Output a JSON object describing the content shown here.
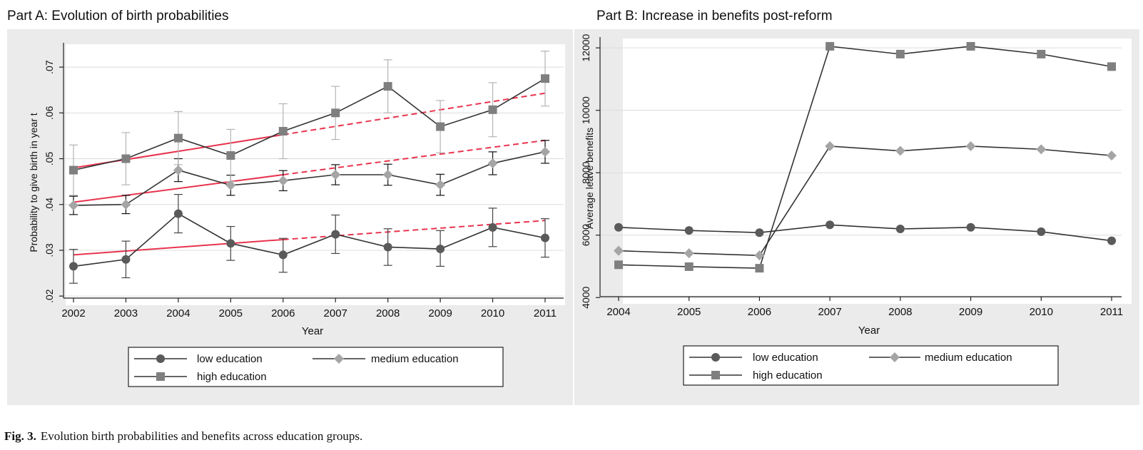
{
  "figure": {
    "caption_label": "Fig. 3.",
    "caption_text": "Evolution birth probabilities and benefits across education groups."
  },
  "colors": {
    "panel_bg": "#ebebeb",
    "plot_bg": "#ffffff",
    "grid": "#dcdcdc",
    "low": "#5a5a5a",
    "medium": "#a5a5a5",
    "high": "#7f7f7f",
    "line": "#333333",
    "trend": "#e8344f",
    "err_low": "#444444",
    "err_medium": "#111111",
    "err_high": "#b4b4b4"
  },
  "chart_data": [
    {
      "id": "partA",
      "type": "line",
      "title": "Part A: Evolution of birth probabilities",
      "xlabel": "Year",
      "ylabel": "Probability to give birth in year t",
      "x": [
        2002,
        2003,
        2004,
        2005,
        2006,
        2007,
        2008,
        2009,
        2010,
        2011
      ],
      "ylim": [
        0.018,
        0.075
      ],
      "yticks": [
        0.02,
        0.03,
        0.04,
        0.05,
        0.06,
        0.07
      ],
      "ytick_labels": [
        ".02",
        ".03",
        ".04",
        ".05",
        ".06",
        ".07"
      ],
      "xtick_labels": [
        "2002",
        "2003",
        "2004",
        "2005",
        "2006",
        "2007",
        "2008",
        "2009",
        "2010",
        "2011"
      ],
      "grid": true,
      "series": [
        {
          "name": "low education",
          "marker": "circle",
          "values": [
            0.0265,
            0.028,
            0.038,
            0.0315,
            0.029,
            0.0335,
            0.0307,
            0.0303,
            0.035,
            0.0327
          ],
          "ci_low": [
            0.0228,
            0.024,
            0.0338,
            0.0278,
            0.0252,
            0.0293,
            0.0267,
            0.0265,
            0.0308,
            0.0285
          ],
          "ci_high": [
            0.0302,
            0.032,
            0.0422,
            0.0352,
            0.0326,
            0.0377,
            0.0347,
            0.0343,
            0.0392,
            0.0369
          ]
        },
        {
          "name": "medium education",
          "marker": "diamond",
          "values": [
            0.0398,
            0.04,
            0.0475,
            0.0442,
            0.0452,
            0.0465,
            0.0465,
            0.0443,
            0.049,
            0.0515
          ],
          "ci_low": [
            0.0378,
            0.038,
            0.045,
            0.042,
            0.043,
            0.0443,
            0.0442,
            0.042,
            0.0465,
            0.049
          ],
          "ci_high": [
            0.0418,
            0.042,
            0.05,
            0.0464,
            0.0474,
            0.0487,
            0.0488,
            0.0466,
            0.0515,
            0.054
          ]
        },
        {
          "name": "high education",
          "marker": "square",
          "values": [
            0.0475,
            0.05,
            0.0545,
            0.0507,
            0.056,
            0.06,
            0.0658,
            0.057,
            0.0607,
            0.0675
          ],
          "ci_low": [
            0.042,
            0.0443,
            0.0487,
            0.045,
            0.05,
            0.0542,
            0.06,
            0.0513,
            0.0548,
            0.0615
          ],
          "ci_high": [
            0.053,
            0.0557,
            0.0603,
            0.0564,
            0.062,
            0.0658,
            0.0716,
            0.0627,
            0.0666,
            0.0735
          ]
        }
      ],
      "trends": [
        {
          "series": "low education",
          "solid_x": [
            2002,
            2006
          ],
          "dashed_x": [
            2006,
            2011
          ],
          "y_at_2002": 0.029,
          "y_at_2011": 0.0365
        },
        {
          "series": "medium education",
          "solid_x": [
            2002,
            2006
          ],
          "dashed_x": [
            2006,
            2011
          ],
          "y_at_2002": 0.0405,
          "y_at_2011": 0.054
        },
        {
          "series": "high education",
          "solid_x": [
            2002,
            2006
          ],
          "dashed_x": [
            2006,
            2011
          ],
          "y_at_2002": 0.048,
          "y_at_2011": 0.0643
        }
      ],
      "legend": [
        "low education",
        "medium education",
        "high education"
      ],
      "legend_placement": "bottom"
    },
    {
      "id": "partB",
      "type": "line",
      "title": "Part B: Increase in benefits post-reform",
      "xlabel": "Year",
      "ylabel": "Average leave benefits",
      "x": [
        2004,
        2005,
        2006,
        2007,
        2008,
        2009,
        2010,
        2011
      ],
      "ylim": [
        3800,
        12300
      ],
      "yticks": [
        4000,
        6000,
        8000,
        10000,
        12000
      ],
      "ytick_labels": [
        "4000",
        "6000",
        "8000",
        "10000",
        "12000"
      ],
      "xtick_labels": [
        "2004",
        "2005",
        "2006",
        "2007",
        "2008",
        "2009",
        "2010",
        "2011"
      ],
      "grid": true,
      "series": [
        {
          "name": "low education",
          "marker": "circle",
          "values": [
            6250,
            6150,
            6080,
            6330,
            6200,
            6250,
            6110,
            5820
          ]
        },
        {
          "name": "medium education",
          "marker": "diamond",
          "values": [
            5500,
            5420,
            5350,
            8850,
            8700,
            8850,
            8750,
            8550
          ]
        },
        {
          "name": "high education",
          "marker": "square",
          "values": [
            5050,
            4990,
            4940,
            12050,
            11800,
            12050,
            11800,
            11400
          ]
        }
      ],
      "legend": [
        "low education",
        "medium education",
        "high education"
      ],
      "legend_placement": "bottom"
    }
  ]
}
